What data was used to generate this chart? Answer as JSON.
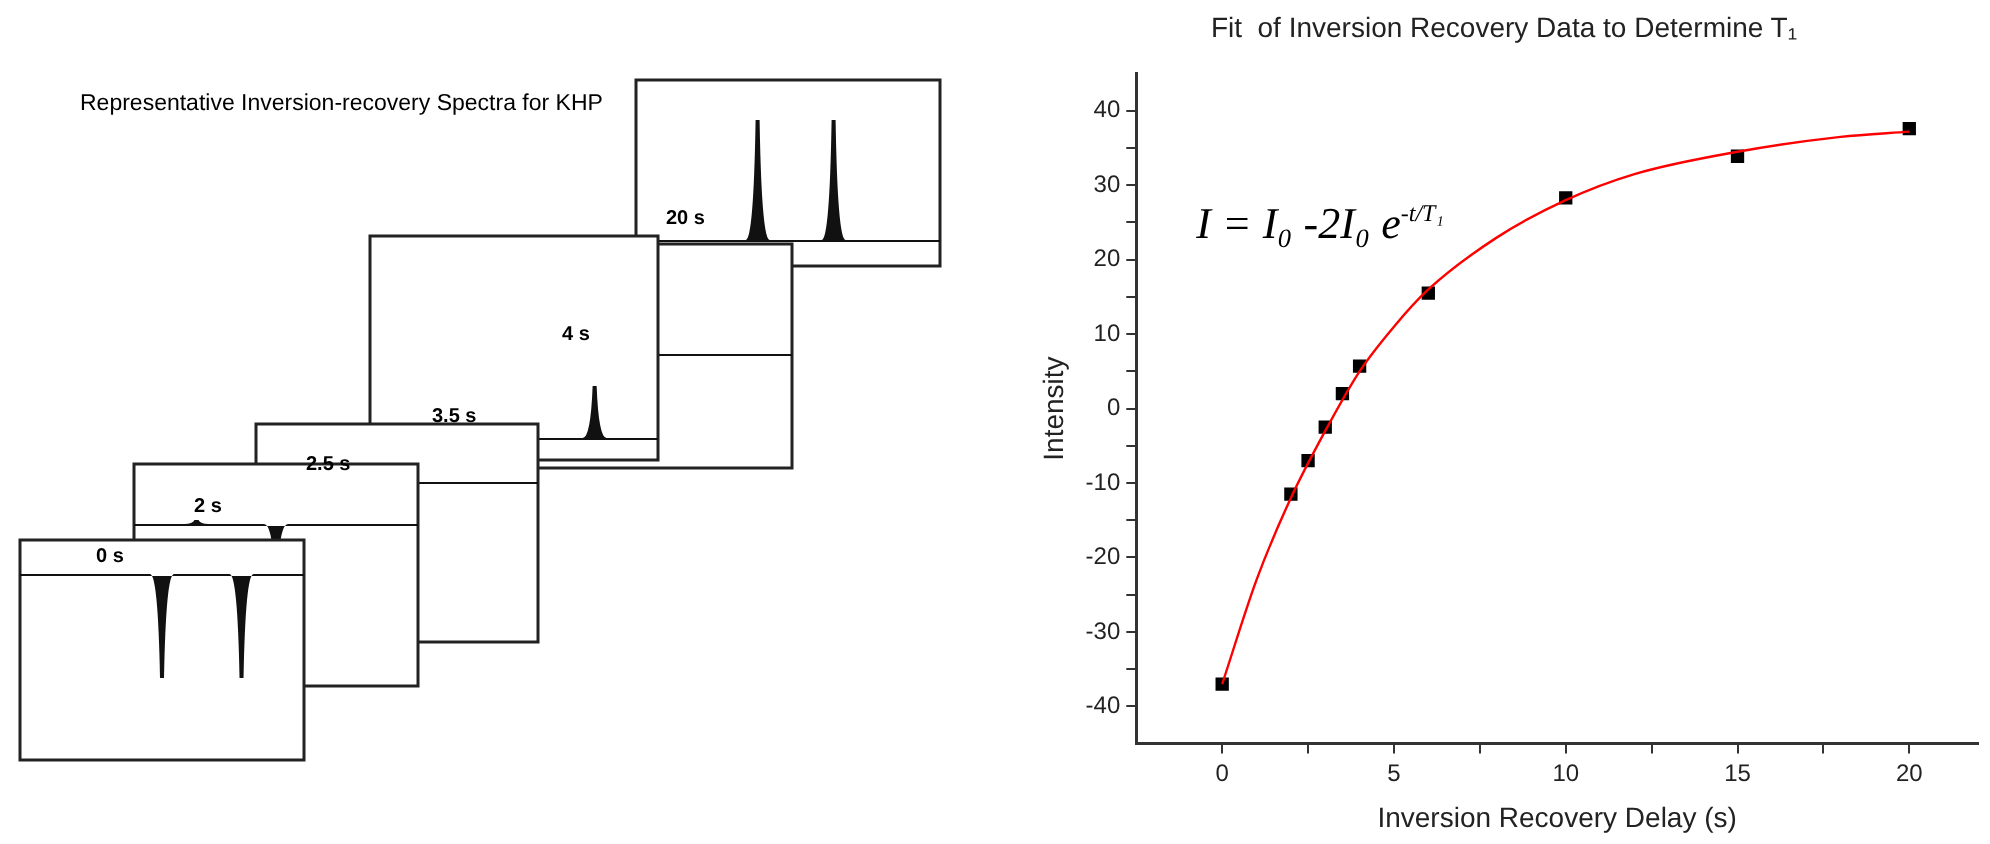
{
  "chart_data": [
    {
      "type": "other",
      "title": "Representative Inversion-recovery Spectra for KHP",
      "annotations": [
        "0 s",
        "2 s",
        "2.5 s",
        "3.5 s",
        "4 s",
        "20 s"
      ]
    },
    {
      "type": "scatter",
      "title": "Fit  of Inversion Recovery Data to Determine T₁",
      "xlabel": "Inversion Recovery Delay (s)",
      "ylabel": "Intensity",
      "annotations": [
        "I = I₀ -2I₀ e$^{-t/T₁}$"
      ],
      "xlim": [
        -2.5,
        22
      ],
      "xticks": [
        0,
        {
          "value": 2.5,
          "label": null
        },
        5,
        {
          "value": 7.5,
          "label": null
        },
        10,
        {
          "value": 12.5,
          "label": null
        },
        15,
        {
          "value": 17.5,
          "label": null
        },
        20
      ],
      "ylim": [
        -45,
        45
      ],
      "yticks": [
        -40,
        {
          "value": -35,
          "label": null
        },
        -30,
        {
          "value": -25,
          "label": null
        },
        -20,
        {
          "value": -15,
          "label": null
        },
        -10,
        {
          "value": -5,
          "label": null
        },
        0,
        {
          "value": 5,
          "label": null
        },
        10,
        {
          "value": 15,
          "label": null
        },
        20,
        {
          "value": 25,
          "label": null
        },
        30,
        {
          "value": 35,
          "label": null
        },
        40
      ],
      "grid": false,
      "legend": false,
      "series": [
        {
          "type": "line",
          "color": "#ff0000",
          "marker": "none",
          "x": [
            0,
            1,
            2,
            3,
            4,
            5,
            6,
            8,
            10,
            12,
            15,
            18,
            20
          ],
          "values": [
            -37,
            -23,
            -12,
            -3,
            5,
            11,
            16,
            23,
            28,
            31.5,
            34.5,
            36.5,
            37.2
          ]
        },
        {
          "type": "scatter",
          "color": "#000000",
          "marker": "square",
          "x": [
            0,
            2,
            2.5,
            3,
            3.5,
            4,
            6,
            10,
            15,
            20
          ],
          "values": [
            -37,
            -11.5,
            -7,
            -2.5,
            2,
            5.7,
            15.5,
            28.3,
            33.9,
            37.6
          ]
        }
      ]
    }
  ]
}
